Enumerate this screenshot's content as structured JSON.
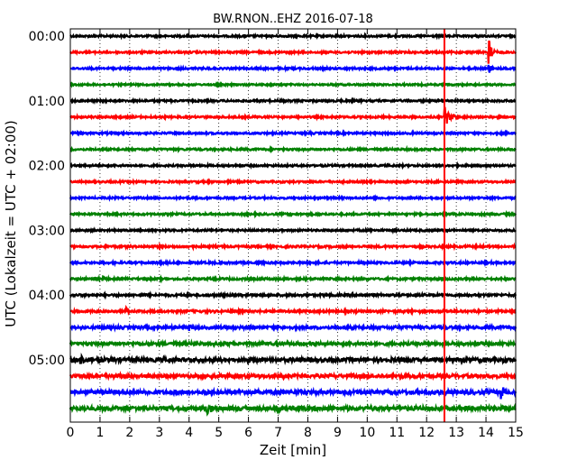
{
  "chart_data": {
    "type": "line",
    "title": "BW.RNON..EHZ 2016-07-18",
    "xlabel": "Zeit  [min]",
    "ylabel": "UTC (Lokalzeit = UTC + 02:00)",
    "xlim": [
      0,
      15
    ],
    "x_ticks": [
      "0",
      "1",
      "2",
      "3",
      "4",
      "5",
      "6",
      "7",
      "8",
      "9",
      "10",
      "11",
      "12",
      "13",
      "14",
      "15"
    ],
    "row_interval_minutes": 15,
    "grid": "vertical-dotted",
    "hour_labels": [
      {
        "label": "00:00",
        "row": 0
      },
      {
        "label": "01:00",
        "row": 4
      },
      {
        "label": "02:00",
        "row": 8
      },
      {
        "label": "03:00",
        "row": 12
      },
      {
        "label": "04:00",
        "row": 16
      },
      {
        "label": "05:00",
        "row": 20
      }
    ],
    "trace_colors": [
      "#000000",
      "#ff0000",
      "#0000ff",
      "#008000"
    ],
    "rows": [
      {
        "start": "00:00",
        "color": "#000000",
        "noise": 1.0,
        "events": []
      },
      {
        "start": "00:15",
        "color": "#ff0000",
        "noise": 1.0,
        "events": [
          {
            "t": 14.1,
            "amp": 14,
            "dur": 0.3
          }
        ]
      },
      {
        "start": "00:30",
        "color": "#0000ff",
        "noise": 1.0,
        "events": [
          {
            "t": 14.1,
            "amp": 12,
            "dur": 0.25
          }
        ]
      },
      {
        "start": "00:45",
        "color": "#008000",
        "noise": 0.9,
        "events": []
      },
      {
        "start": "01:00",
        "color": "#000000",
        "noise": 1.0,
        "events": []
      },
      {
        "start": "01:15",
        "color": "#ff0000",
        "noise": 1.0,
        "events": [
          {
            "t": 12.6,
            "amp": 12,
            "dur": 0.5
          }
        ]
      },
      {
        "start": "01:30",
        "color": "#0000ff",
        "noise": 1.0,
        "events": []
      },
      {
        "start": "01:45",
        "color": "#008000",
        "noise": 1.0,
        "events": []
      },
      {
        "start": "02:00",
        "color": "#000000",
        "noise": 1.0,
        "events": []
      },
      {
        "start": "02:15",
        "color": "#ff0000",
        "noise": 1.0,
        "events": []
      },
      {
        "start": "02:30",
        "color": "#0000ff",
        "noise": 1.0,
        "events": []
      },
      {
        "start": "02:45",
        "color": "#008000",
        "noise": 1.0,
        "events": []
      },
      {
        "start": "03:00",
        "color": "#000000",
        "noise": 1.0,
        "events": []
      },
      {
        "start": "03:15",
        "color": "#ff0000",
        "noise": 1.1,
        "events": [
          {
            "t": 4.1,
            "amp": 3,
            "dur": 0.2
          }
        ]
      },
      {
        "start": "03:30",
        "color": "#0000ff",
        "noise": 1.1,
        "events": []
      },
      {
        "start": "03:45",
        "color": "#008000",
        "noise": 1.1,
        "events": [
          {
            "t": 1.1,
            "amp": 3,
            "dur": 0.2
          }
        ]
      },
      {
        "start": "04:00",
        "color": "#000000",
        "noise": 1.2,
        "events": []
      },
      {
        "start": "04:15",
        "color": "#ff0000",
        "noise": 1.2,
        "events": [
          {
            "t": 1.9,
            "amp": 4,
            "dur": 0.2
          }
        ]
      },
      {
        "start": "04:30",
        "color": "#0000ff",
        "noise": 1.5,
        "events": [
          {
            "t": 4.0,
            "amp": 3,
            "dur": 0.3
          }
        ]
      },
      {
        "start": "04:45",
        "color": "#008000",
        "noise": 1.6,
        "events": [
          {
            "t": 6.5,
            "amp": 2.5,
            "dur": 0.3
          }
        ]
      },
      {
        "start": "05:00",
        "color": "#000000",
        "noise": 2.0,
        "events": [
          {
            "t": 0.35,
            "amp": 5,
            "dur": 0.4
          }
        ]
      },
      {
        "start": "05:15",
        "color": "#ff0000",
        "noise": 1.8,
        "events": [
          {
            "t": 1.4,
            "amp": 3,
            "dur": 0.3
          }
        ]
      },
      {
        "start": "05:30",
        "color": "#0000ff",
        "noise": 2.0,
        "events": [
          {
            "t": 14.5,
            "amp": 10,
            "dur": 0.3
          },
          {
            "t": 4.6,
            "amp": 4,
            "dur": 0.2
          }
        ]
      },
      {
        "start": "05:45",
        "color": "#008000",
        "noise": 2.2,
        "events": [
          {
            "t": 4.6,
            "amp": 6,
            "dur": 0.3
          },
          {
            "t": 7.0,
            "amp": 5,
            "dur": 0.3
          }
        ]
      }
    ],
    "marker_line": {
      "x": 12.6,
      "color": "#ff0000"
    }
  }
}
